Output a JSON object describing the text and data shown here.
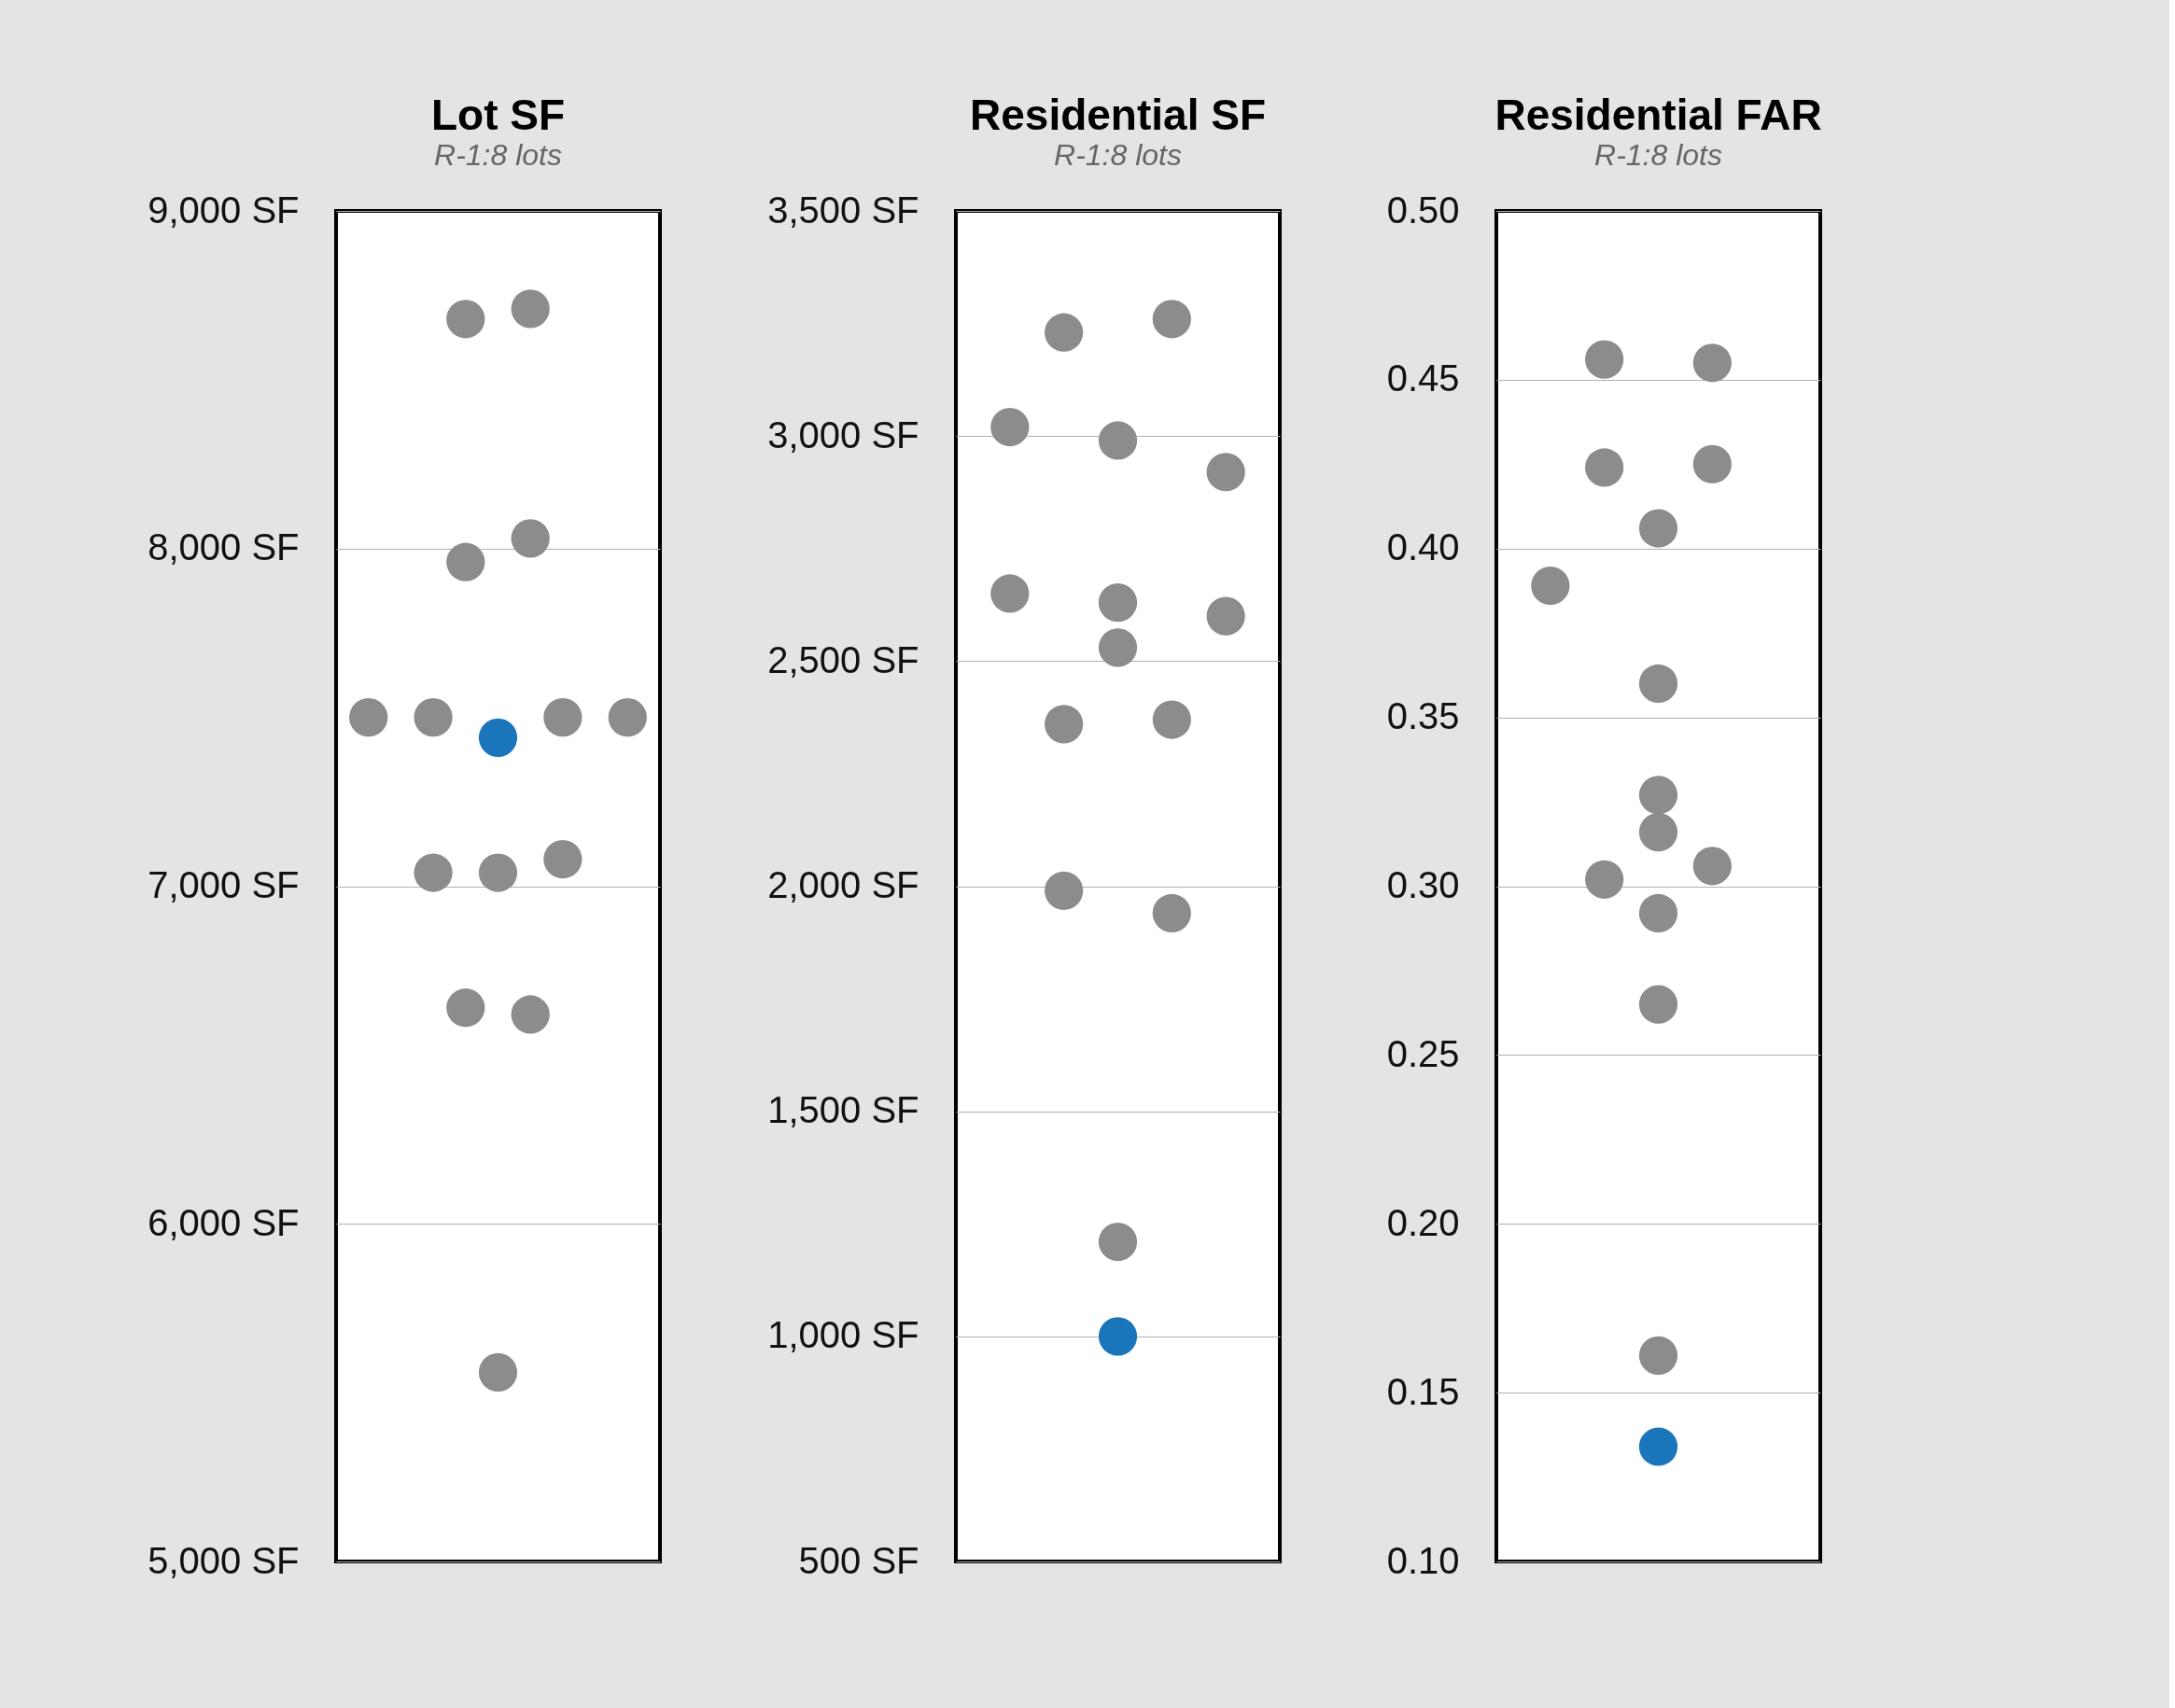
{
  "chart_data": [
    {
      "type": "scatter",
      "title": "Lot SF",
      "subtitle": "R-1:8 lots",
      "categories": [
        null,
        null,
        null,
        null,
        null,
        null,
        null,
        null,
        null
      ],
      "ylim": [
        5000,
        9000
      ],
      "yticks": [
        {
          "value": 5000,
          "label": "5,000 SF"
        },
        {
          "value": 6000,
          "label": "6,000 SF"
        },
        {
          "value": 7000,
          "label": "7,000 SF"
        },
        {
          "value": 8000,
          "label": "8,000 SF"
        },
        {
          "value": 9000,
          "label": "9,000 SF"
        }
      ],
      "grid": "y",
      "legend": false,
      "marker": "circle",
      "tick_labels": "y",
      "series": [
        {
          "color": "#8c8c8c",
          "values": [
            7500,
            null,
            7500,
            8680,
            7040,
            8710,
            7500,
            null,
            7500
          ]
        },
        {
          "color": "#8c8c8c",
          "values": [
            null,
            null,
            7040,
            7960,
            5560,
            8030,
            7080,
            null,
            null
          ]
        },
        {
          "color": "#8c8c8c",
          "values": [
            null,
            null,
            null,
            6640,
            null,
            6620,
            null,
            null,
            null
          ]
        },
        {
          "color": "#1a75bb",
          "values": [
            null,
            null,
            null,
            null,
            7440,
            null,
            null,
            null,
            null
          ]
        }
      ]
    },
    {
      "type": "scatter",
      "title": "Residential SF",
      "subtitle": "R-1:8 lots",
      "categories": [
        null,
        null,
        null,
        null,
        null
      ],
      "ylim": [
        500,
        3500
      ],
      "yticks": [
        {
          "value": 500,
          "label": "500 SF"
        },
        {
          "value": 1000,
          "label": "1,000 SF"
        },
        {
          "value": 1500,
          "label": "1,500 SF"
        },
        {
          "value": 2000,
          "label": "2,000 SF"
        },
        {
          "value": 2500,
          "label": "2,500 SF"
        },
        {
          "value": 3000,
          "label": "3,000 SF"
        },
        {
          "value": 3500,
          "label": "3,500 SF"
        }
      ],
      "grid": "y",
      "legend": false,
      "marker": "circle",
      "tick_labels": "y",
      "series": [
        {
          "color": "#8c8c8c",
          "values": [
            3020,
            3230,
            2990,
            3260,
            2920
          ]
        },
        {
          "color": "#8c8c8c",
          "values": [
            2650,
            2360,
            2630,
            2370,
            2600
          ]
        },
        {
          "color": "#8c8c8c",
          "values": [
            null,
            1990,
            2530,
            1940,
            null
          ]
        },
        {
          "color": "#8c8c8c",
          "values": [
            null,
            null,
            1210,
            null,
            null
          ]
        },
        {
          "color": "#1a75bb",
          "values": [
            null,
            null,
            1000,
            null,
            null
          ]
        }
      ]
    },
    {
      "type": "scatter",
      "title": "Residential FAR",
      "subtitle": "R-1:8 lots",
      "categories": [
        null,
        null,
        null,
        null,
        null
      ],
      "ylim": [
        0.1,
        0.5
      ],
      "yticks": [
        {
          "value": 0.1,
          "label": "0.10"
        },
        {
          "value": 0.15,
          "label": "0.15"
        },
        {
          "value": 0.2,
          "label": "0.20"
        },
        {
          "value": 0.25,
          "label": "0.25"
        },
        {
          "value": 0.3,
          "label": "0.30"
        },
        {
          "value": 0.35,
          "label": "0.35"
        },
        {
          "value": 0.4,
          "label": "0.40"
        },
        {
          "value": 0.45,
          "label": "0.45"
        },
        {
          "value": 0.5,
          "label": "0.50"
        }
      ],
      "grid": "y",
      "legend": false,
      "marker": "circle",
      "tick_labels": "y",
      "series": [
        {
          "color": "#8c8c8c",
          "values": [
            0.389,
            0.456,
            0.406,
            0.455,
            null
          ]
        },
        {
          "color": "#8c8c8c",
          "values": [
            null,
            0.424,
            0.36,
            0.425,
            null
          ]
        },
        {
          "color": "#8c8c8c",
          "values": [
            null,
            0.302,
            0.327,
            0.306,
            null
          ]
        },
        {
          "color": "#8c8c8c",
          "values": [
            null,
            null,
            0.316,
            null,
            null
          ]
        },
        {
          "color": "#8c8c8c",
          "values": [
            null,
            null,
            0.292,
            null,
            null
          ]
        },
        {
          "color": "#8c8c8c",
          "values": [
            null,
            null,
            0.265,
            null,
            null
          ]
        },
        {
          "color": "#8c8c8c",
          "values": [
            null,
            null,
            0.161,
            null,
            null
          ]
        },
        {
          "color": "#1a75bb",
          "values": [
            null,
            null,
            0.134,
            null,
            null
          ]
        }
      ]
    }
  ]
}
